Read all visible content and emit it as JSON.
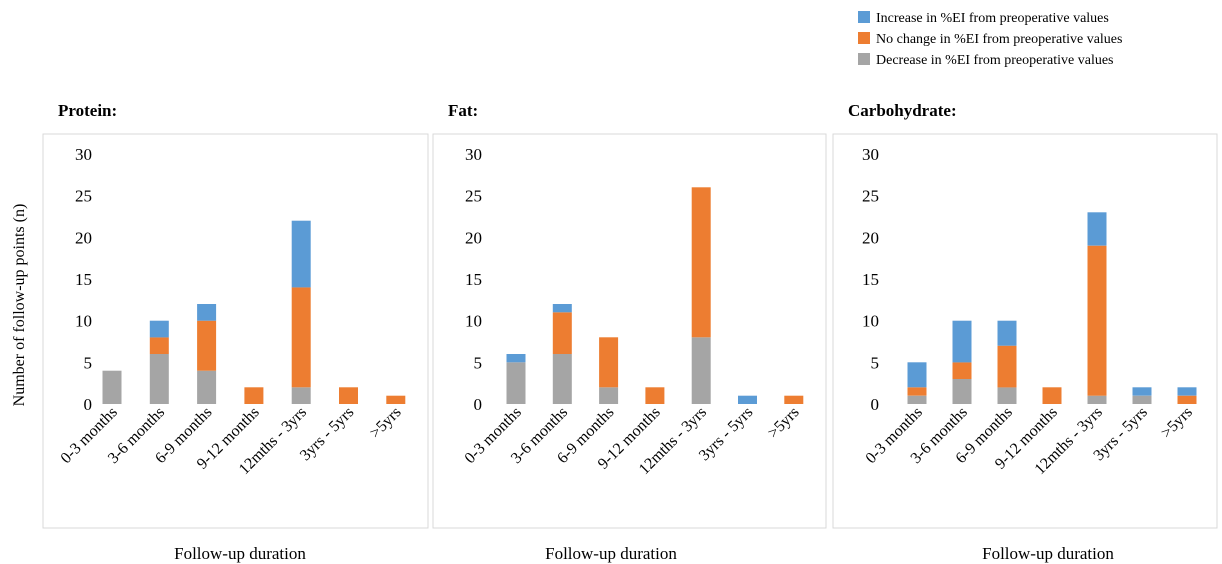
{
  "ylabel": "Number of follow-up points (n)",
  "legend": [
    {
      "key": "increase",
      "label": "Increase in %EI from preoperative values",
      "color": "#5B9BD5"
    },
    {
      "key": "no_change",
      "label": "No change in %EI from preoperative values",
      "color": "#ED7D31"
    },
    {
      "key": "decrease",
      "label": "Decrease in %EI from preoperative values",
      "color": "#A5A5A5"
    }
  ],
  "chart_data": [
    {
      "type": "bar",
      "stacked": true,
      "title": "Protein:",
      "xlabel": "Follow-up duration",
      "ylim": [
        0,
        30
      ],
      "yticks": [
        0,
        5,
        10,
        15,
        20,
        25,
        30
      ],
      "categories": [
        "0-3 months",
        "3-6 months",
        "6-9 months",
        "9-12 months",
        "12mths - 3yrs",
        "3yrs - 5yrs",
        ">5yrs"
      ],
      "series": [
        {
          "name": "Decrease in %EI from preoperative values",
          "values": [
            4,
            6,
            4,
            0,
            2,
            0,
            0
          ]
        },
        {
          "name": "No change in %EI from preoperative values",
          "values": [
            0,
            2,
            6,
            2,
            12,
            2,
            1
          ]
        },
        {
          "name": "Increase in %EI from preoperative values",
          "values": [
            0,
            2,
            2,
            0,
            8,
            0,
            0
          ]
        }
      ]
    },
    {
      "type": "bar",
      "stacked": true,
      "title": "Fat:",
      "xlabel": "Follow-up duration",
      "ylim": [
        0,
        30
      ],
      "yticks": [
        0,
        5,
        10,
        15,
        20,
        25,
        30
      ],
      "categories": [
        "0-3 months",
        "3-6 months",
        "6-9 months",
        "9-12 months",
        "12mths - 3yrs",
        "3yrs - 5yrs",
        ">5yrs"
      ],
      "series": [
        {
          "name": "Decrease in %EI from preoperative values",
          "values": [
            5,
            6,
            2,
            0,
            8,
            0,
            0
          ]
        },
        {
          "name": "No change in %EI from preoperative values",
          "values": [
            0,
            5,
            6,
            2,
            18,
            0,
            1
          ]
        },
        {
          "name": "Increase in %EI from preoperative values",
          "values": [
            1,
            1,
            0,
            0,
            0,
            1,
            0
          ]
        }
      ]
    },
    {
      "type": "bar",
      "stacked": true,
      "title": "Carbohydrate:",
      "xlabel": "Follow-up duration",
      "ylim": [
        0,
        30
      ],
      "yticks": [
        0,
        5,
        10,
        15,
        20,
        25,
        30
      ],
      "categories": [
        "0-3 months",
        "3-6 months",
        "6-9 months",
        "9-12 months",
        "12mths - 3yrs",
        "3yrs - 5yrs",
        ">5yrs"
      ],
      "series": [
        {
          "name": "Decrease in %EI from preoperative values",
          "values": [
            1,
            3,
            2,
            0,
            1,
            1,
            0
          ]
        },
        {
          "name": "No change in %EI from preoperative values",
          "values": [
            1,
            2,
            5,
            2,
            18,
            0,
            1
          ]
        },
        {
          "name": "Increase in %EI from preoperative values",
          "values": [
            3,
            5,
            3,
            0,
            4,
            1,
            1
          ]
        }
      ]
    }
  ]
}
